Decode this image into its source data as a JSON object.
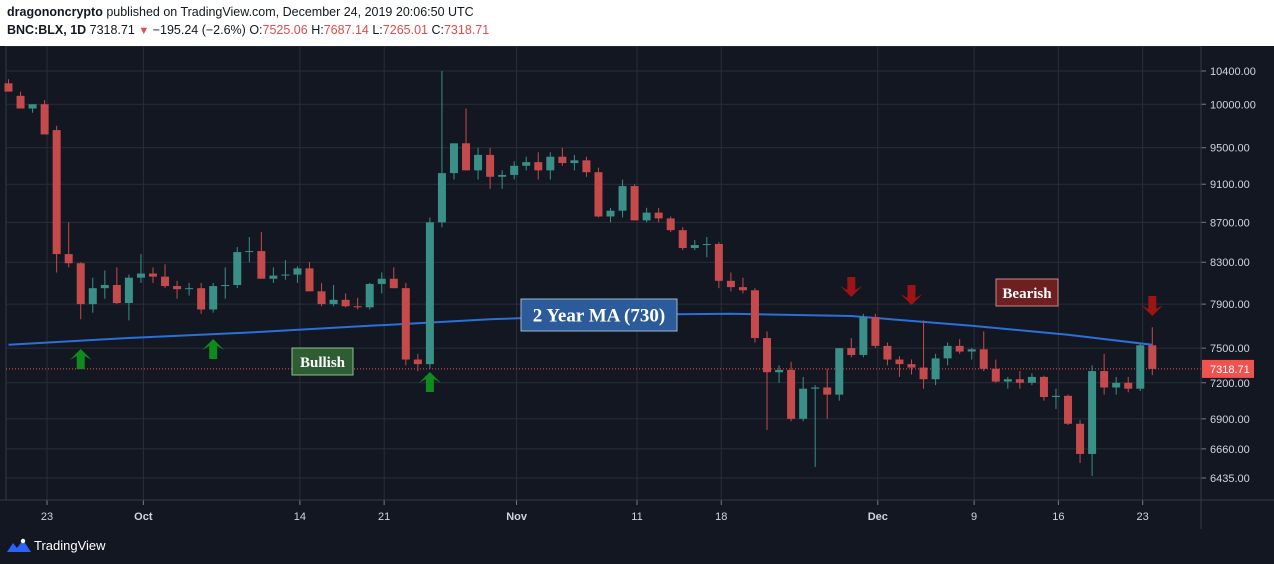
{
  "header": {
    "user": "dragononcrypto",
    "published": "published on TradingView.com, December 24, 2019 20:06:50 UTC",
    "symbol": "BNC:BLX, 1D",
    "last": "7318.71",
    "change": "−195.24 (−2.6%)",
    "o_label": "O:",
    "o_value": "7525.06",
    "h_label": "H:",
    "h_value": "7687.14",
    "l_label": "L:",
    "l_value": "7265.01",
    "c_label": "C:",
    "c_value": "7318.71"
  },
  "footer": {
    "brand": "TradingView"
  },
  "annotations": {
    "ma_label": "2 Year MA (730)",
    "bullish_label": "Bullish",
    "bearish_label": "Bearish"
  },
  "colors": {
    "background": "#131722",
    "up": "#26a69a",
    "down": "#ef5350",
    "ma": "#2962ff",
    "bull_arrow": "#0f8a1c",
    "bear_arrow": "#9c1414",
    "price_tag": "#ef5350"
  },
  "chart_data": {
    "type": "candlestick",
    "title": "",
    "price_axis": {
      "ticks": [
        10400,
        10000,
        9500,
        9100,
        8700,
        8300,
        7900,
        7500,
        7200,
        6900,
        6660,
        6435
      ],
      "tick_labels": [
        "10400.00",
        "10000.00",
        "9500.00",
        "9100.00",
        "8700.00",
        "8300.00",
        "7900.00",
        "7500.00",
        "7200.00",
        "6900.00",
        "6660.00",
        "6435.00"
      ],
      "last_price_label": "7318.71",
      "scale": "log"
    },
    "time_axis": {
      "labels": [
        {
          "text": "23",
          "index": 3
        },
        {
          "text": "Oct",
          "index": 11
        },
        {
          "text": "14",
          "index": 24
        },
        {
          "text": "21",
          "index": 31
        },
        {
          "text": "Nov",
          "index": 42
        },
        {
          "text": "11",
          "index": 52
        },
        {
          "text": "18",
          "index": 59
        },
        {
          "text": "Dec",
          "index": 72
        },
        {
          "text": "9",
          "index": 80
        },
        {
          "text": "16",
          "index": 87
        },
        {
          "text": "23",
          "index": 94
        }
      ]
    },
    "candles": [
      {
        "o": 10250,
        "h": 10300,
        "l": 10150,
        "c": 10150
      },
      {
        "o": 10100,
        "h": 10150,
        "l": 9950,
        "c": 9950
      },
      {
        "o": 9950,
        "h": 10000,
        "l": 9900,
        "c": 10000
      },
      {
        "o": 10000,
        "h": 10050,
        "l": 9650,
        "c": 9650
      },
      {
        "o": 9700,
        "h": 9750,
        "l": 8200,
        "c": 8380
      },
      {
        "o": 8380,
        "h": 8700,
        "l": 8250,
        "c": 8290
      },
      {
        "o": 8290,
        "h": 8300,
        "l": 7760,
        "c": 7900
      },
      {
        "o": 7900,
        "h": 8150,
        "l": 7820,
        "c": 8050
      },
      {
        "o": 8050,
        "h": 8220,
        "l": 7950,
        "c": 8080
      },
      {
        "o": 8080,
        "h": 8250,
        "l": 7900,
        "c": 7910
      },
      {
        "o": 7910,
        "h": 8180,
        "l": 7750,
        "c": 8150
      },
      {
        "o": 8150,
        "h": 8380,
        "l": 8100,
        "c": 8190
      },
      {
        "o": 8190,
        "h": 8250,
        "l": 8100,
        "c": 8160
      },
      {
        "o": 8160,
        "h": 8280,
        "l": 8050,
        "c": 8070
      },
      {
        "o": 8070,
        "h": 8120,
        "l": 7950,
        "c": 8040
      },
      {
        "o": 8040,
        "h": 8100,
        "l": 7980,
        "c": 8050
      },
      {
        "o": 8050,
        "h": 8100,
        "l": 7810,
        "c": 7850
      },
      {
        "o": 7850,
        "h": 8100,
        "l": 7820,
        "c": 8070
      },
      {
        "o": 8070,
        "h": 8250,
        "l": 7950,
        "c": 8080
      },
      {
        "o": 8080,
        "h": 8450,
        "l": 8050,
        "c": 8400
      },
      {
        "o": 8400,
        "h": 8550,
        "l": 8300,
        "c": 8410
      },
      {
        "o": 8410,
        "h": 8600,
        "l": 8150,
        "c": 8140
      },
      {
        "o": 8140,
        "h": 8250,
        "l": 8100,
        "c": 8170
      },
      {
        "o": 8170,
        "h": 8320,
        "l": 8130,
        "c": 8180
      },
      {
        "o": 8180,
        "h": 8260,
        "l": 8100,
        "c": 8240
      },
      {
        "o": 8240,
        "h": 8300,
        "l": 8020,
        "c": 8020
      },
      {
        "o": 8020,
        "h": 8100,
        "l": 7880,
        "c": 7900
      },
      {
        "o": 7900,
        "h": 8080,
        "l": 7880,
        "c": 7940
      },
      {
        "o": 7940,
        "h": 8000,
        "l": 7870,
        "c": 7880
      },
      {
        "o": 7880,
        "h": 7960,
        "l": 7850,
        "c": 7870
      },
      {
        "o": 7870,
        "h": 8100,
        "l": 7850,
        "c": 8090
      },
      {
        "o": 8090,
        "h": 8200,
        "l": 8000,
        "c": 8140
      },
      {
        "o": 8140,
        "h": 8250,
        "l": 8050,
        "c": 8050
      },
      {
        "o": 8050,
        "h": 8100,
        "l": 7350,
        "c": 7400
      },
      {
        "o": 7400,
        "h": 7450,
        "l": 7300,
        "c": 7360
      },
      {
        "o": 7360,
        "h": 8750,
        "l": 7320,
        "c": 8700
      },
      {
        "o": 8700,
        "h": 10400,
        "l": 8650,
        "c": 9220
      },
      {
        "o": 9220,
        "h": 9550,
        "l": 9150,
        "c": 9550
      },
      {
        "o": 9550,
        "h": 9950,
        "l": 9250,
        "c": 9250
      },
      {
        "o": 9250,
        "h": 9500,
        "l": 9150,
        "c": 9420
      },
      {
        "o": 9420,
        "h": 9500,
        "l": 9050,
        "c": 9180
      },
      {
        "o": 9180,
        "h": 9250,
        "l": 9050,
        "c": 9200
      },
      {
        "o": 9200,
        "h": 9350,
        "l": 9150,
        "c": 9300
      },
      {
        "o": 9300,
        "h": 9400,
        "l": 9250,
        "c": 9340
      },
      {
        "o": 9340,
        "h": 9450,
        "l": 9150,
        "c": 9250
      },
      {
        "o": 9250,
        "h": 9450,
        "l": 9150,
        "c": 9400
      },
      {
        "o": 9400,
        "h": 9500,
        "l": 9300,
        "c": 9330
      },
      {
        "o": 9330,
        "h": 9420,
        "l": 9250,
        "c": 9360
      },
      {
        "o": 9360,
        "h": 9400,
        "l": 9180,
        "c": 9230
      },
      {
        "o": 9230,
        "h": 9280,
        "l": 8750,
        "c": 8760
      },
      {
        "o": 8760,
        "h": 8850,
        "l": 8700,
        "c": 8820
      },
      {
        "o": 8820,
        "h": 9150,
        "l": 8750,
        "c": 9080
      },
      {
        "o": 9080,
        "h": 9100,
        "l": 8720,
        "c": 8720
      },
      {
        "o": 8720,
        "h": 8850,
        "l": 8700,
        "c": 8800
      },
      {
        "o": 8800,
        "h": 8850,
        "l": 8700,
        "c": 8740
      },
      {
        "o": 8740,
        "h": 8760,
        "l": 8600,
        "c": 8620
      },
      {
        "o": 8620,
        "h": 8650,
        "l": 8420,
        "c": 8440
      },
      {
        "o": 8440,
        "h": 8520,
        "l": 8420,
        "c": 8470
      },
      {
        "o": 8470,
        "h": 8550,
        "l": 8350,
        "c": 8480
      },
      {
        "o": 8480,
        "h": 8500,
        "l": 8050,
        "c": 8120
      },
      {
        "o": 8120,
        "h": 8200,
        "l": 8020,
        "c": 8060
      },
      {
        "o": 8060,
        "h": 8150,
        "l": 8000,
        "c": 8030
      },
      {
        "o": 8030,
        "h": 8050,
        "l": 7550,
        "c": 7590
      },
      {
        "o": 7590,
        "h": 7650,
        "l": 6810,
        "c": 7290
      },
      {
        "o": 7290,
        "h": 7350,
        "l": 7200,
        "c": 7310
      },
      {
        "o": 7310,
        "h": 7380,
        "l": 6880,
        "c": 6900
      },
      {
        "o": 6900,
        "h": 7250,
        "l": 6880,
        "c": 7150
      },
      {
        "o": 7150,
        "h": 7180,
        "l": 6520,
        "c": 7160
      },
      {
        "o": 7160,
        "h": 7320,
        "l": 6900,
        "c": 7100
      },
      {
        "o": 7100,
        "h": 7500,
        "l": 7050,
        "c": 7500
      },
      {
        "o": 7500,
        "h": 7590,
        "l": 7420,
        "c": 7440
      },
      {
        "o": 7440,
        "h": 7810,
        "l": 7420,
        "c": 7780
      },
      {
        "o": 7780,
        "h": 7810,
        "l": 7500,
        "c": 7520
      },
      {
        "o": 7520,
        "h": 7550,
        "l": 7350,
        "c": 7400
      },
      {
        "o": 7400,
        "h": 7430,
        "l": 7250,
        "c": 7360
      },
      {
        "o": 7360,
        "h": 7400,
        "l": 7270,
        "c": 7330
      },
      {
        "o": 7330,
        "h": 7750,
        "l": 7150,
        "c": 7230
      },
      {
        "o": 7230,
        "h": 7450,
        "l": 7180,
        "c": 7410
      },
      {
        "o": 7410,
        "h": 7550,
        "l": 7350,
        "c": 7520
      },
      {
        "o": 7520,
        "h": 7580,
        "l": 7450,
        "c": 7470
      },
      {
        "o": 7470,
        "h": 7500,
        "l": 7400,
        "c": 7490
      },
      {
        "o": 7490,
        "h": 7650,
        "l": 7300,
        "c": 7320
      },
      {
        "o": 7320,
        "h": 7400,
        "l": 7200,
        "c": 7210
      },
      {
        "o": 7210,
        "h": 7250,
        "l": 7150,
        "c": 7230
      },
      {
        "o": 7230,
        "h": 7300,
        "l": 7150,
        "c": 7200
      },
      {
        "o": 7200,
        "h": 7280,
        "l": 7180,
        "c": 7250
      },
      {
        "o": 7250,
        "h": 7260,
        "l": 7050,
        "c": 7080
      },
      {
        "o": 7080,
        "h": 7150,
        "l": 6980,
        "c": 7090
      },
      {
        "o": 7090,
        "h": 7100,
        "l": 6850,
        "c": 6860
      },
      {
        "o": 6860,
        "h": 6890,
        "l": 6550,
        "c": 6620
      },
      {
        "o": 6620,
        "h": 7350,
        "l": 6450,
        "c": 7300
      },
      {
        "o": 7300,
        "h": 7450,
        "l": 7100,
        "c": 7160
      },
      {
        "o": 7160,
        "h": 7250,
        "l": 7100,
        "c": 7200
      },
      {
        "o": 7200,
        "h": 7250,
        "l": 7120,
        "c": 7150
      },
      {
        "o": 7150,
        "h": 7540,
        "l": 7130,
        "c": 7525
      },
      {
        "o": 7525.06,
        "h": 7687.14,
        "l": 7265.01,
        "c": 7318.71
      }
    ],
    "ma_line": [
      {
        "i": 0,
        "v": 7530
      },
      {
        "i": 10,
        "v": 7590
      },
      {
        "i": 20,
        "v": 7640
      },
      {
        "i": 30,
        "v": 7700
      },
      {
        "i": 40,
        "v": 7760
      },
      {
        "i": 50,
        "v": 7800
      },
      {
        "i": 60,
        "v": 7810
      },
      {
        "i": 70,
        "v": 7790
      },
      {
        "i": 80,
        "v": 7700
      },
      {
        "i": 88,
        "v": 7620
      },
      {
        "i": 95,
        "v": 7530
      }
    ],
    "arrows": {
      "bull": [
        6,
        17,
        35
      ],
      "bear": [
        70,
        75,
        95
      ]
    }
  }
}
